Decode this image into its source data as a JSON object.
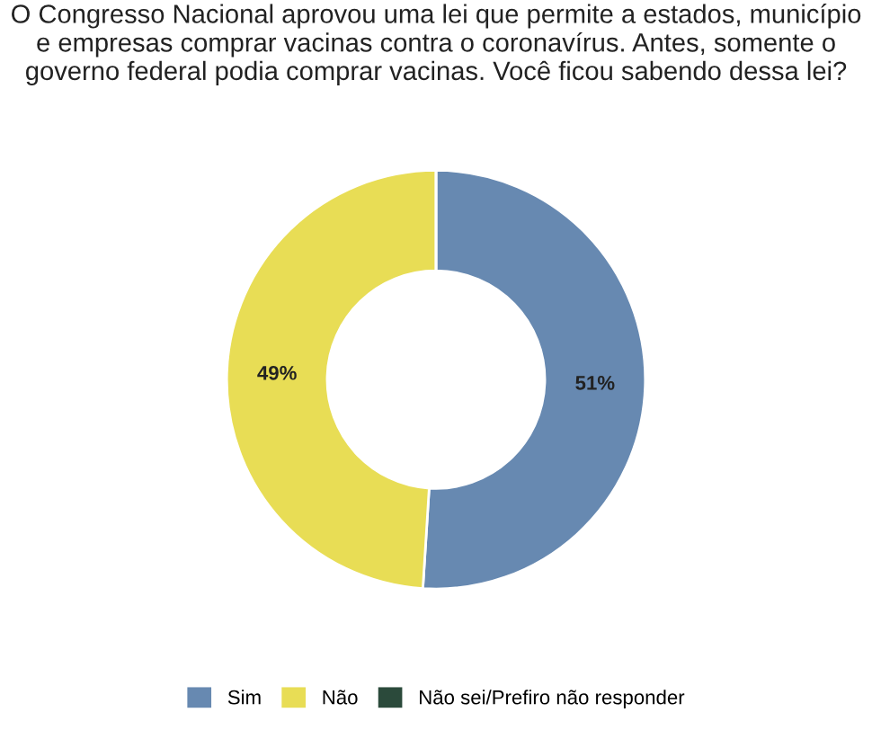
{
  "chart_data": {
    "type": "donut",
    "title": "O Congresso Nacional aprovou uma lei que permite a estados, município e empresas comprar vacinas contra o coronavírus. Antes, somente o governo federal podia comprar vacinas. Você ficou sabendo dessa lei?",
    "categories": [
      "Sim",
      "Não",
      "Não sei/Prefiro não responder"
    ],
    "values": [
      51,
      49,
      0
    ],
    "colors": [
      "#6789b1",
      "#e8dd55",
      "#2b4a3b"
    ],
    "value_labels": [
      "51%",
      "49%",
      null
    ],
    "legend": "bottom"
  }
}
